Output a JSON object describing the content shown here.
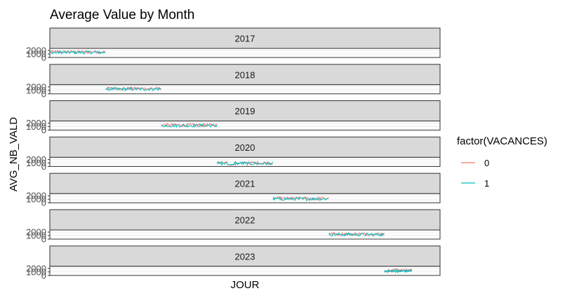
{
  "chart_data": {
    "type": "line",
    "title": "Average Value by Month",
    "xlabel": "JOUR",
    "ylabel": "AVG_NB_VALD",
    "x_range": [
      "2017-01-01",
      "2023-12-31"
    ],
    "ylim": [
      0,
      2600
    ],
    "y_ticks": [
      0,
      1000,
      2000
    ],
    "y_tick_labels": [
      "0",
      "1000",
      "2000"
    ],
    "facets": [
      "2017",
      "2018",
      "2019",
      "2020",
      "2021",
      "2022",
      "2023"
    ],
    "facet_data_ranges": [
      {
        "facet": "2017",
        "start": "2017-01-01",
        "end": "2017-12-31"
      },
      {
        "facet": "2018",
        "start": "2018-01-01",
        "end": "2018-12-31"
      },
      {
        "facet": "2019",
        "start": "2019-01-01",
        "end": "2019-12-31"
      },
      {
        "facet": "2020",
        "start": "2020-01-01",
        "end": "2020-12-31"
      },
      {
        "facet": "2021",
        "start": "2021-01-01",
        "end": "2021-12-31"
      },
      {
        "facet": "2022",
        "start": "2022-01-01",
        "end": "2022-12-31"
      },
      {
        "facet": "2023",
        "start": "2023-01-01",
        "end": "2023-06-30"
      }
    ],
    "grid": true,
    "legend": {
      "title": "factor(VACANCES)",
      "position": "right",
      "entries": [
        {
          "label": "0",
          "color": "#F8766D"
        },
        {
          "label": "1",
          "color": "#00BFC4"
        }
      ]
    },
    "series_colors": {
      "0": "#F8766D",
      "1": "#00BFC4"
    },
    "typical_level": {
      "2017": 1600,
      "2018": 1500,
      "2019": 1450,
      "2020": 1000,
      "2021": 1250,
      "2022": 1450,
      "2023": 1400
    }
  }
}
